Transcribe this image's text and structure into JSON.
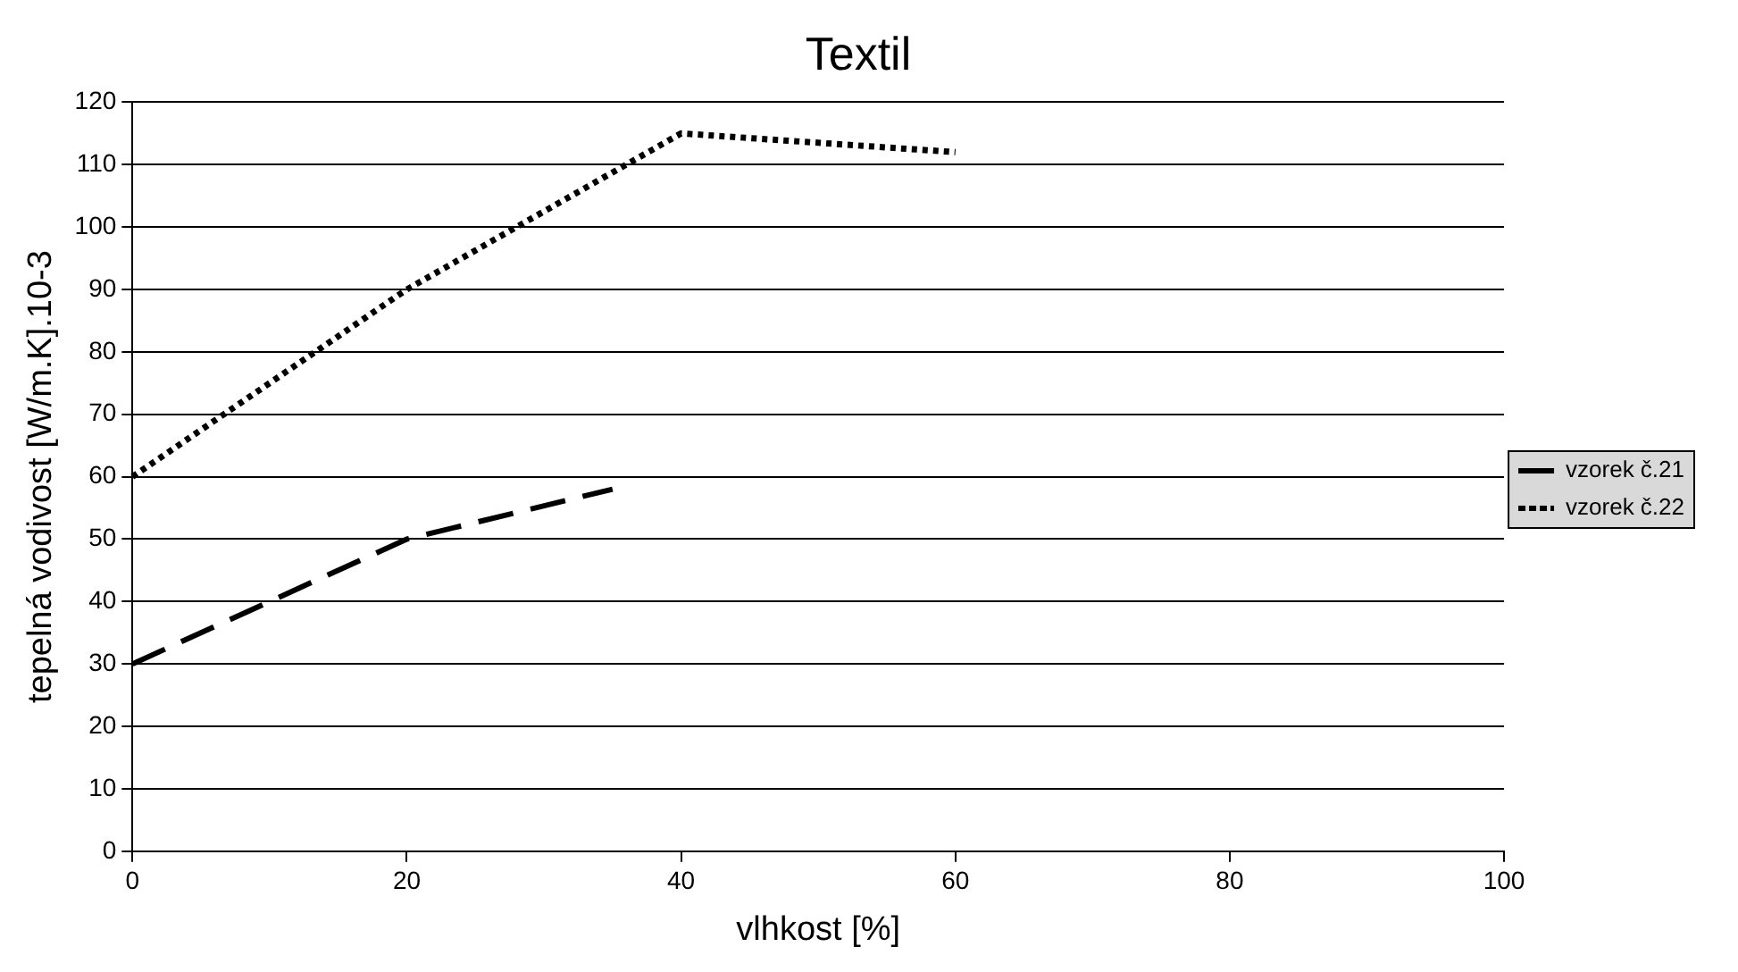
{
  "chart_data": {
    "type": "line",
    "title": "Textil",
    "xlabel": "vlhkost [%]",
    "ylabel": "tepelná vodivost [W/m.K].10-3",
    "xlim": [
      0,
      100
    ],
    "xticks": [
      0,
      20,
      40,
      60,
      80,
      100
    ],
    "ylim": [
      0,
      120
    ],
    "yticks": [
      0,
      10,
      20,
      30,
      40,
      50,
      60,
      70,
      80,
      90,
      100,
      110,
      120
    ],
    "grid": "y",
    "legend": "right",
    "marker": "none",
    "series": [
      {
        "name": "vzorek č.21",
        "color": "#000000",
        "line_style": "dashed",
        "x": [
          0,
          20,
          35
        ],
        "values": [
          30,
          50,
          58
        ]
      },
      {
        "name": "vzorek č.22",
        "color": "#000000",
        "line_style": "dotted",
        "x": [
          0,
          20,
          40,
          60
        ],
        "values": [
          60,
          90,
          115,
          112
        ]
      }
    ]
  }
}
